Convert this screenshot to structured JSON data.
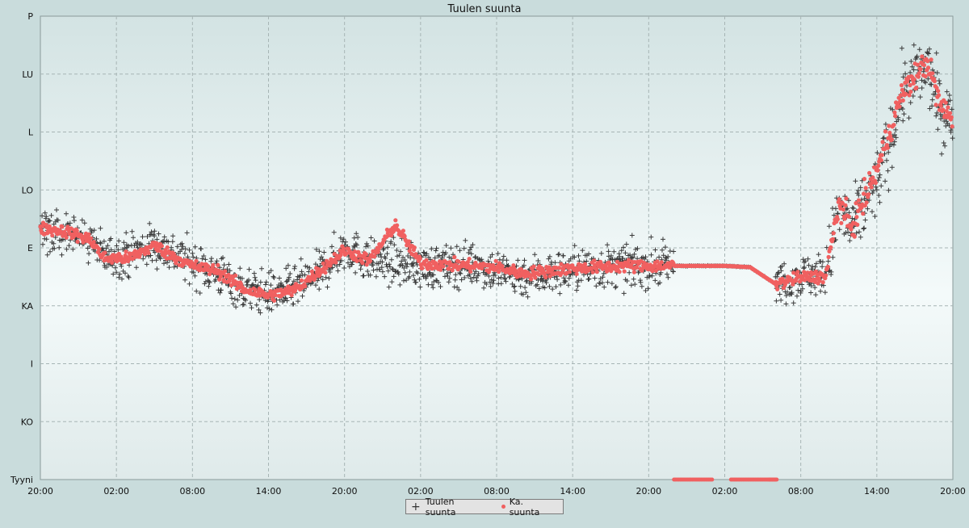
{
  "chart_data": {
    "type": "scatter",
    "title": "Tuulen suunta",
    "xlabel": "",
    "ylabel": "",
    "x_ticks": [
      "20:00",
      "02:00",
      "08:00",
      "14:00",
      "20:00",
      "02:00",
      "08:00",
      "14:00",
      "20:00",
      "02:00",
      "08:00",
      "14:00",
      "20:00"
    ],
    "x_range_hours": [
      0,
      72
    ],
    "y_ticks": [
      {
        "label": "P",
        "value": 360
      },
      {
        "label": "LU",
        "value": 315
      },
      {
        "label": "L",
        "value": 270
      },
      {
        "label": "LO",
        "value": 225
      },
      {
        "label": "E",
        "value": 180
      },
      {
        "label": "KA",
        "value": 135
      },
      {
        "label": "I",
        "value": 90
      },
      {
        "label": "KO",
        "value": 45
      },
      {
        "label": "Tyyni",
        "value": 0
      }
    ],
    "ylim": [
      0,
      360
    ],
    "grid": true,
    "legend_position": "bottom-center",
    "series": [
      {
        "name": "Tuulen suunta",
        "marker": "plus",
        "color": "#3a3a3a",
        "mean_path": [
          [
            0,
            195
          ],
          [
            2,
            190
          ],
          [
            4,
            185
          ],
          [
            5,
            173
          ],
          [
            7,
            175
          ],
          [
            9,
            183
          ],
          [
            10,
            178
          ],
          [
            12,
            168
          ],
          [
            14,
            160
          ],
          [
            16,
            148
          ],
          [
            18,
            145
          ],
          [
            20,
            148
          ],
          [
            22,
            160
          ],
          [
            24,
            180
          ],
          [
            26,
            170
          ],
          [
            28,
            168
          ],
          [
            30,
            165
          ],
          [
            32,
            165
          ],
          [
            34,
            168
          ],
          [
            36,
            162
          ],
          [
            38,
            158
          ],
          [
            40,
            160
          ],
          [
            42,
            163
          ],
          [
            44,
            165
          ],
          [
            46,
            166
          ],
          [
            48,
            166
          ],
          [
            50,
            166
          ],
          [
            52,
            166
          ],
          [
            54,
            166
          ],
          [
            56,
            165
          ],
          [
            58,
            152
          ],
          [
            60,
            158
          ],
          [
            62,
            160
          ],
          [
            63,
            210
          ],
          [
            64,
            195
          ],
          [
            66,
            230
          ],
          [
            67,
            260
          ],
          [
            68,
            300
          ],
          [
            70,
            320
          ],
          [
            71,
            285
          ],
          [
            72,
            280
          ]
        ]
      },
      {
        "name": "Ka. suunta",
        "marker": "dot",
        "color": "#f06060",
        "mean_path": [
          [
            0,
            195
          ],
          [
            2,
            193
          ],
          [
            4,
            186
          ],
          [
            5,
            172
          ],
          [
            7,
            172
          ],
          [
            9,
            182
          ],
          [
            10,
            176
          ],
          [
            12,
            166
          ],
          [
            14,
            162
          ],
          [
            16,
            148
          ],
          [
            18,
            143
          ],
          [
            20,
            147
          ],
          [
            22,
            162
          ],
          [
            24,
            178
          ],
          [
            26,
            170
          ],
          [
            28,
            198
          ],
          [
            30,
            168
          ],
          [
            32,
            167
          ],
          [
            34,
            166
          ],
          [
            36,
            165
          ],
          [
            38,
            160
          ],
          [
            40,
            162
          ],
          [
            42,
            164
          ],
          [
            44,
            165
          ],
          [
            46,
            166
          ],
          [
            48,
            166
          ],
          [
            50,
            166
          ],
          [
            52,
            166
          ],
          [
            54,
            166
          ],
          [
            56,
            165
          ],
          [
            58,
            152
          ],
          [
            60,
            157
          ],
          [
            62,
            158
          ],
          [
            63,
            215
          ],
          [
            64,
            195
          ],
          [
            66,
            240
          ],
          [
            67,
            270
          ],
          [
            68,
            300
          ],
          [
            70,
            325
          ],
          [
            71,
            290
          ],
          [
            72,
            280
          ]
        ]
      },
      {
        "name": "calm",
        "marker": "dot",
        "color": "#f06060",
        "segments": [
          [
            50,
            53
          ],
          [
            54.5,
            58
          ],
          [
            57.5,
            58.2
          ]
        ],
        "value": 0
      }
    ]
  },
  "legend": {
    "item1": "Tuulen suunta",
    "item2": "Ka. suunta"
  }
}
